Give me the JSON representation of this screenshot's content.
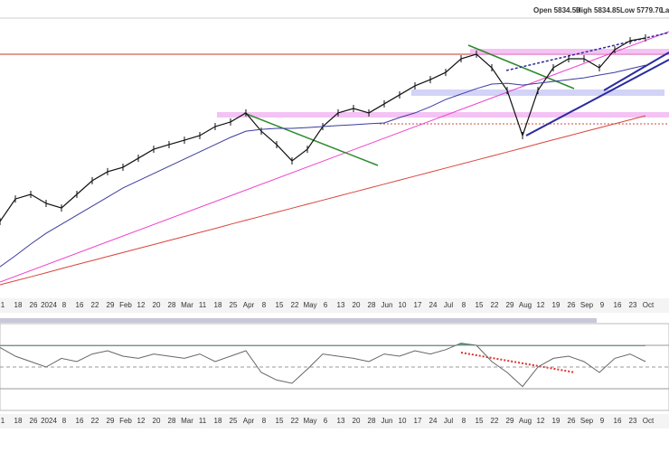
{
  "chart_data": {
    "type": "line",
    "header": [
      "Open 5834.50",
      "High 5834.85",
      "Low 5779.70",
      "Las"
    ],
    "categories": [
      "1",
      "18",
      "26",
      "2024",
      "8",
      "16",
      "22",
      "29",
      "Feb",
      "12",
      "20",
      "28",
      "Mar",
      "11",
      "18",
      "25",
      "Apr",
      "8",
      "15",
      "22",
      "May",
      "6",
      "13",
      "20",
      "28",
      "Jun",
      "10",
      "17",
      "24",
      "Jul",
      "8",
      "15",
      "22",
      "29",
      "Aug",
      "12",
      "19",
      "26",
      "Sep",
      "9",
      "16",
      "23",
      "Oct"
    ],
    "ylim": [
      4300,
      5900
    ],
    "series": [
      {
        "color": "#111111",
        "values": [
          4796,
          4908,
          4931,
          4886,
          4863,
          4931,
          4999,
          5044,
          5066,
          5111,
          5156,
          5179,
          5201,
          5224,
          5269,
          5292,
          5337,
          5246,
          5179,
          5098,
          5156,
          5269,
          5337,
          5359,
          5337,
          5382,
          5427,
          5472,
          5503,
          5539,
          5607,
          5630,
          5562,
          5449,
          5224,
          5449,
          5562,
          5607,
          5607,
          5562,
          5652,
          5697,
          5711
        ]
      },
      {
        "color": "#3b3b9e",
        "values": [
          4570,
          4625,
          4683,
          4737,
          4782,
          4827,
          4872,
          4917,
          4963,
          4999,
          5035,
          5071,
          5107,
          5143,
          5179,
          5215,
          5246,
          5255,
          5260,
          5260,
          5264,
          5269,
          5274,
          5278,
          5283,
          5287,
          5314,
          5337,
          5368,
          5404,
          5431,
          5458,
          5481,
          5485,
          5476,
          5485,
          5494,
          5503,
          5512,
          5526,
          5539,
          5557,
          5575
        ]
      },
      {
        "color": "#d9443c",
        "values": [
          4480,
          4500,
          4520,
          4540,
          4561,
          4581,
          4601,
          4621,
          4641,
          4661,
          4681,
          4701,
          4721,
          4741,
          4761,
          4782,
          4802,
          4822,
          4842,
          4862,
          4882,
          4902,
          4922,
          4942,
          4962,
          4982,
          5002,
          5022,
          5042,
          5062,
          5082,
          5102,
          5122,
          5142,
          5162,
          5183,
          5203,
          5223,
          5243,
          5263,
          5283,
          5303,
          5323
        ]
      }
    ],
    "rsi": {
      "color": "#666666",
      "fill": "#5f9e8f",
      "ylim": [
        10,
        90
      ],
      "levels": [
        30,
        50,
        70
      ],
      "values": [
        68,
        60,
        55,
        50,
        58,
        55,
        62,
        65,
        60,
        58,
        62,
        60,
        58,
        62,
        55,
        60,
        65,
        45,
        38,
        35,
        48,
        62,
        60,
        58,
        55,
        62,
        60,
        65,
        62,
        66,
        72,
        70,
        55,
        45,
        32,
        50,
        58,
        60,
        55,
        45,
        58,
        62,
        55
      ]
    }
  }
}
